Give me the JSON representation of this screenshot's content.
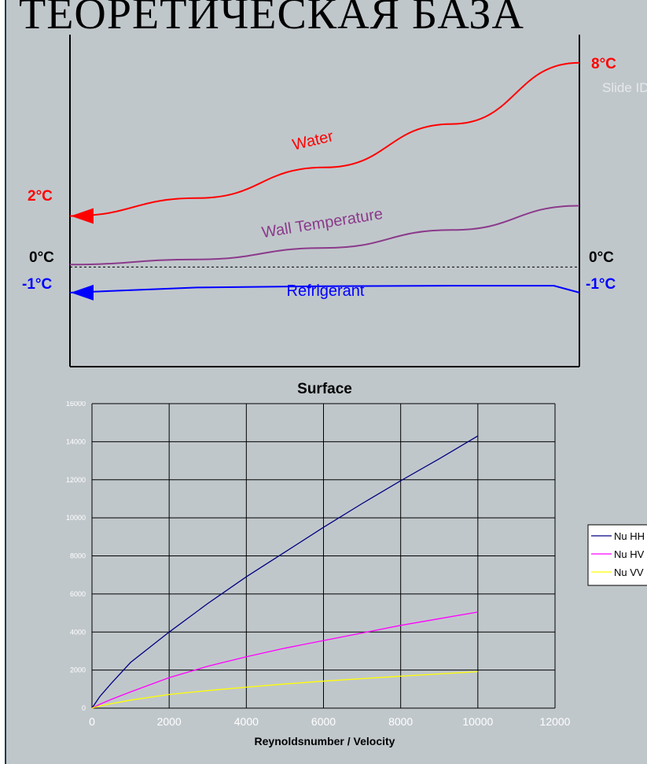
{
  "slide": {
    "title": "ТЕОРЕТИЧЕСКАЯ БАЗА",
    "slide_id_text": "Slide ID"
  },
  "chart_data": [
    {
      "type": "line",
      "title": "",
      "xlabel": "Surface",
      "ylabel": "",
      "colors": {
        "water": "#ff0000",
        "wall": "#8b3a8b",
        "refrigerant": "#0000ff"
      },
      "labels": {
        "water_left": "2°C",
        "water_right": "8°C",
        "zero_left": "0°C",
        "zero_right": "0°C",
        "refrigerant_left": "-1°C",
        "refrigerant_right": "-1°C"
      },
      "series": [
        {
          "name": "Water",
          "x": [
            0,
            0.25,
            0.5,
            0.75,
            1
          ],
          "y": [
            2,
            2.7,
            3.9,
            5.6,
            8
          ]
        },
        {
          "name": "Wall Temperature",
          "x": [
            0,
            0.25,
            0.5,
            0.75,
            1
          ],
          "y": [
            0.1,
            0.3,
            0.75,
            1.45,
            2.4
          ]
        },
        {
          "name": "Refrigerant",
          "x": [
            0,
            0.25,
            0.5,
            0.75,
            0.95,
            1
          ],
          "y": [
            -1,
            -0.8,
            -0.75,
            -0.73,
            -0.73,
            -1
          ]
        }
      ],
      "reference_line": {
        "y": 0,
        "style": "dashed"
      },
      "ylim": [
        -3.9,
        9.1
      ]
    },
    {
      "type": "line",
      "title": "",
      "xlabel": "Reynoldsnumber / Velocity",
      "ylabel": "",
      "xlim": [
        0,
        12000
      ],
      "ylim": [
        0,
        16000
      ],
      "x_ticks": [
        "0",
        "2000",
        "4000",
        "6000",
        "8000",
        "10000",
        "12000"
      ],
      "y_ticks": [
        "0",
        "2000",
        "4000",
        "6000",
        "8000",
        "10000",
        "12000",
        "14000",
        "16000"
      ],
      "grid": true,
      "legend_position": "right",
      "x": [
        0,
        200,
        500,
        1000,
        2000,
        3000,
        4000,
        5000,
        6000,
        7000,
        8000,
        9000,
        10000
      ],
      "series": [
        {
          "name": "Nu HH",
          "color": "#000080",
          "values": [
            0,
            600,
            1300,
            2400,
            4000,
            5500,
            6900,
            8200,
            9500,
            10750,
            11950,
            13100,
            14300
          ]
        },
        {
          "name": "Nu HV",
          "color": "#ff00ff",
          "values": [
            0,
            200,
            460,
            850,
            1600,
            2200,
            2700,
            3150,
            3550,
            3950,
            4350,
            4700,
            5050
          ]
        },
        {
          "name": "Nu VV",
          "color": "#ffff00",
          "values": [
            0,
            110,
            230,
            420,
            720,
            920,
            1100,
            1270,
            1420,
            1550,
            1680,
            1800,
            1920
          ]
        }
      ]
    }
  ]
}
